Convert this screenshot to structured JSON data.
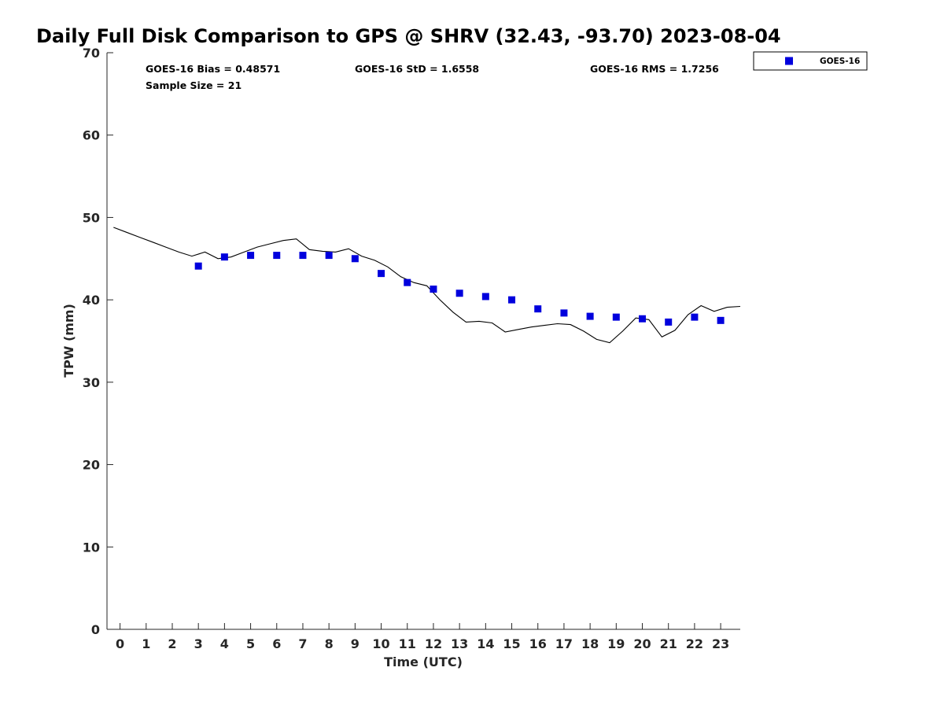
{
  "chart_data": {
    "type": "scatter",
    "title": "Daily Full Disk Comparison to GPS @ SHRV (32.43, -93.70) 2023-08-04",
    "xlabel": "Time (UTC)",
    "ylabel": "TPW (mm)",
    "xlim": [
      -0.5,
      23.75
    ],
    "ylim": [
      0,
      70
    ],
    "x_ticks": [
      0,
      1,
      2,
      3,
      4,
      5,
      6,
      7,
      8,
      9,
      10,
      11,
      12,
      13,
      14,
      15,
      16,
      17,
      18,
      19,
      20,
      21,
      22,
      23
    ],
    "x_tick_labels": [
      "0",
      "1",
      "2",
      "3",
      "4",
      "5",
      "6",
      "7",
      "8",
      "9",
      "10",
      "11",
      "12",
      "13",
      "14",
      "15",
      "16",
      "17",
      "18",
      "19",
      "20",
      "21",
      "22",
      "23"
    ],
    "y_ticks": [
      0,
      10,
      20,
      30,
      40,
      50,
      60,
      70
    ],
    "y_tick_labels": [
      "0",
      "10",
      "20",
      "30",
      "40",
      "50",
      "60",
      "70"
    ],
    "grid": false,
    "legend_position": "top-right outside",
    "stats": {
      "bias": "GOES-16 Bias = 0.48571",
      "std": "GOES-16 StD = 1.6558",
      "rms": "GOES-16 RMS = 1.7256",
      "sample": "Sample Size = 21"
    },
    "series": [
      {
        "name": "GOES-16",
        "style": "square-markers",
        "color": "#0000dd",
        "x": [
          3,
          4,
          5,
          6,
          7,
          8,
          9,
          10,
          11,
          12,
          13,
          14,
          15,
          16,
          17,
          18,
          19,
          20,
          21,
          22,
          23
        ],
        "y": [
          44.1,
          45.2,
          45.4,
          45.4,
          45.4,
          45.4,
          45.0,
          43.2,
          42.1,
          41.3,
          40.8,
          40.4,
          40.0,
          38.9,
          38.4,
          38.0,
          37.9,
          37.7,
          37.3,
          37.9,
          37.5
        ]
      },
      {
        "style": "line",
        "color": "#000000",
        "x": [
          -0.25,
          0.25,
          0.75,
          1.25,
          1.75,
          2.25,
          2.75,
          3.25,
          3.75,
          4.25,
          4.75,
          5.25,
          5.75,
          6.25,
          6.75,
          7.25,
          7.75,
          8.25,
          8.75,
          9.25,
          9.75,
          10.25,
          10.75,
          11.25,
          11.75,
          12.25,
          12.75,
          13.25,
          13.75,
          14.25,
          14.75,
          15.25,
          15.75,
          16.25,
          16.75,
          17.25,
          17.75,
          18.25,
          18.75,
          19.25,
          19.75,
          20.25,
          20.75,
          21.25,
          21.75,
          22.25,
          22.75,
          23.25,
          23.75
        ],
        "y": [
          48.8,
          48.2,
          47.6,
          47.0,
          46.4,
          45.8,
          45.3,
          45.8,
          45.0,
          45.2,
          45.8,
          46.4,
          46.8,
          47.2,
          47.4,
          46.1,
          45.9,
          45.8,
          46.2,
          45.3,
          44.8,
          44.0,
          42.8,
          42.1,
          41.7,
          40.0,
          38.5,
          37.3,
          37.4,
          37.2,
          36.1,
          36.4,
          36.7,
          36.9,
          37.1,
          37.0,
          36.2,
          35.2,
          34.8,
          36.2,
          37.8,
          37.6,
          35.5,
          36.3,
          38.2,
          39.3,
          38.6,
          39.1,
          39.2
        ]
      }
    ]
  }
}
